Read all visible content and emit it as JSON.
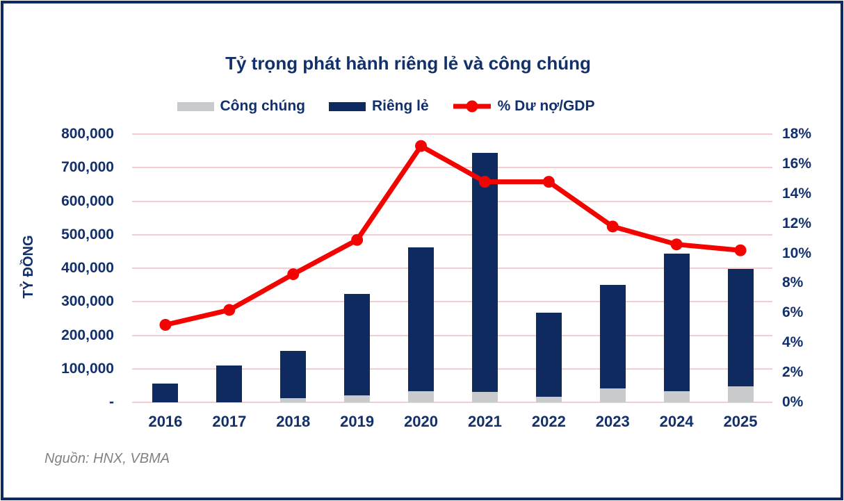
{
  "title": "Tỷ trọng phát hành riêng lẻ và công chúng",
  "source": "Nguồn: HNX, VBMA",
  "legend": {
    "items": [
      {
        "label": "Công chúng",
        "swatch": "gray"
      },
      {
        "label": "Riêng lẻ",
        "swatch": "navy"
      },
      {
        "label": "% Dư nợ/GDP",
        "swatch": "red-line"
      }
    ]
  },
  "colors": {
    "navy": "#0e2a5e",
    "gray": "#c9cacb",
    "red": "#f20500",
    "grid": "#f5cdd1",
    "text": "#12306b",
    "muted": "#7f8185"
  },
  "chart_data": {
    "type": "combo-stacked-bar-line",
    "categories": [
      "2016",
      "2017",
      "2018",
      "2019",
      "2020",
      "2021",
      "2022",
      "2023",
      "2024",
      "2025"
    ],
    "series": [
      {
        "name": "Công chúng",
        "type": "bar",
        "stack_order": "bottom",
        "axis": "left",
        "values": [
          0,
          0,
          13000,
          20000,
          34000,
          31000,
          16000,
          41000,
          34000,
          48000
        ]
      },
      {
        "name": "Riêng lẻ",
        "type": "bar",
        "stack_order": "top",
        "axis": "left",
        "values": [
          55000,
          110000,
          140000,
          303000,
          429000,
          713000,
          251000,
          309000,
          409000,
          349000
        ]
      },
      {
        "name": "% Dư nợ/GDP",
        "type": "line",
        "axis": "right",
        "values": [
          5.2,
          6.2,
          8.6,
          10.9,
          17.2,
          14.8,
          14.8,
          11.8,
          10.6,
          10.2
        ]
      }
    ],
    "left_axis": {
      "title": "TỶ ĐỒNG",
      "min": 0,
      "max": 800000,
      "step": 100000,
      "tick_labels": [
        "800,000",
        "700,000",
        "600,000",
        "500,000",
        "400,000",
        "300,000",
        "200,000",
        "100,000",
        "-"
      ]
    },
    "right_axis": {
      "min": 0,
      "max": 18,
      "step": 2,
      "tick_labels": [
        "18%",
        "16%",
        "14%",
        "12%",
        "10%",
        "8%",
        "6%",
        "4%",
        "2%",
        "0%"
      ]
    },
    "grid": "horizontal-only",
    "legend_position": "top-center"
  }
}
